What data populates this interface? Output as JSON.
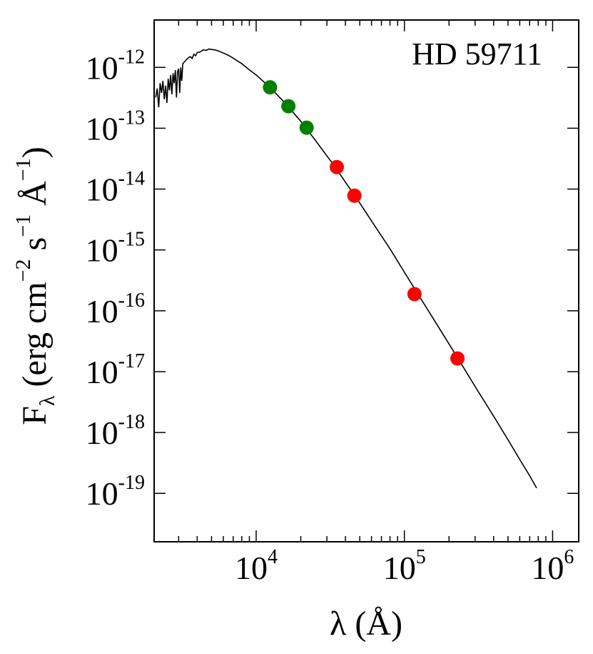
{
  "chart_data": {
    "type": "scatter",
    "title": "",
    "annotation": "HD 59711",
    "xlabel": "λ (Å)",
    "ylabel": "F<sub>λ</sub> (erg cm<sup>−2</sup> s<sup>−1</sup> Å<sup>−1</sup>)",
    "ylabel_parts": {
      "main": "F",
      "main_sub": "λ",
      "open": " (erg cm",
      "exp1": "−2",
      "s": " s",
      "exp2": "−1",
      "angstrom": " Å",
      "exp3": "−1",
      "close": ")"
    },
    "xscale": "log",
    "yscale": "log",
    "xlim": [
      2050,
      1500000
    ],
    "ylim": [
      1.6e-20,
      6e-12
    ],
    "x_ticks": [
      {
        "value": 10000,
        "base": "10",
        "exp": "4"
      },
      {
        "value": 100000,
        "base": "10",
        "exp": "5"
      },
      {
        "value": 1000000,
        "base": "10",
        "exp": "6"
      }
    ],
    "y_ticks": [
      {
        "value": 1e-12,
        "base": "10",
        "exp": "-12"
      },
      {
        "value": 1e-13,
        "base": "10",
        "exp": "-13"
      },
      {
        "value": 1e-14,
        "base": "10",
        "exp": "-14"
      },
      {
        "value": 1e-15,
        "base": "10",
        "exp": "-15"
      },
      {
        "value": 1e-16,
        "base": "10",
        "exp": "-16"
      },
      {
        "value": 1e-17,
        "base": "10",
        "exp": "-17"
      },
      {
        "value": 1e-18,
        "base": "10",
        "exp": "-18"
      },
      {
        "value": 1e-19,
        "base": "10",
        "exp": "-19"
      }
    ],
    "grid": false,
    "series": [
      {
        "kind": "model-curve",
        "color": "#000000",
        "points": [
          [
            2100,
            3.2e-13
          ],
          [
            2150,
            4.5e-13
          ],
          [
            2200,
            2.2e-13
          ],
          [
            2250,
            5.5e-13
          ],
          [
            2300,
            3.8e-13
          ],
          [
            2350,
            6e-13
          ],
          [
            2400,
            3e-13
          ],
          [
            2450,
            5e-13
          ],
          [
            2500,
            2.6e-13
          ],
          [
            2550,
            6.5e-13
          ],
          [
            2600,
            4.2e-13
          ],
          [
            2650,
            7.5e-13
          ],
          [
            2700,
            3.6e-13
          ],
          [
            2750,
            8e-13
          ],
          [
            2800,
            5.5e-13
          ],
          [
            2850,
            9e-13
          ],
          [
            2900,
            3.2e-13
          ],
          [
            2950,
            8.5e-13
          ],
          [
            3000,
            9.5e-13
          ],
          [
            3050,
            3.8e-13
          ],
          [
            3100,
            1e-12
          ],
          [
            3150,
            6e-13
          ],
          [
            3200,
            1.15e-12
          ],
          [
            3300,
            1.25e-12
          ],
          [
            3400,
            1.35e-12
          ],
          [
            3500,
            1.45e-12
          ],
          [
            3600,
            1.5e-12
          ],
          [
            3700,
            1.4e-12
          ],
          [
            3800,
            1.65e-12
          ],
          [
            3900,
            1.55e-12
          ],
          [
            4000,
            1.75e-12
          ],
          [
            4200,
            1.8e-12
          ],
          [
            4400,
            1.95e-12
          ],
          [
            4600,
            1.9e-12
          ],
          [
            4800,
            2e-12
          ],
          [
            5000,
            1.97e-12
          ],
          [
            5300,
            1.93e-12
          ],
          [
            5600,
            1.85e-12
          ],
          [
            6000,
            1.72e-12
          ],
          [
            6500,
            1.58e-12
          ],
          [
            7000,
            1.42e-12
          ],
          [
            7500,
            1.27e-12
          ],
          [
            8000,
            1.15e-12
          ],
          [
            8500,
            1.02e-12
          ],
          [
            9000,
            9.1e-13
          ],
          [
            10000,
            7.5e-13
          ],
          [
            11000,
            6.1e-13
          ],
          [
            12000,
            5e-13
          ],
          [
            13000,
            4.15e-13
          ],
          [
            14000,
            3.45e-13
          ],
          [
            15000,
            2.9e-13
          ],
          [
            16000,
            2.42e-13
          ],
          [
            17000,
            2.05e-13
          ],
          [
            18000,
            1.75e-13
          ],
          [
            20000,
            1.3e-13
          ],
          [
            22000,
            9.6e-14
          ],
          [
            25000,
            6.4e-14
          ],
          [
            28000,
            4.4e-14
          ],
          [
            32000,
            2.85e-14
          ],
          [
            36000,
            1.9e-14
          ],
          [
            40000,
            1.3e-14
          ],
          [
            45000,
            8.6e-15
          ],
          [
            50000,
            5.9e-15
          ],
          [
            60000,
            3e-15
          ],
          [
            70000,
            1.7e-15
          ],
          [
            80000,
            1.04e-15
          ],
          [
            100000,
            4.3e-16
          ],
          [
            120000,
            2.1e-16
          ],
          [
            150000,
            8.8e-17
          ],
          [
            200000,
            2.85e-17
          ],
          [
            250000,
            1.18e-17
          ],
          [
            300000,
            5.7e-18
          ],
          [
            400000,
            1.85e-18
          ],
          [
            500000,
            7.6e-19
          ],
          [
            600000,
            3.6e-19
          ],
          [
            700000,
            1.95e-19
          ],
          [
            780000,
            1.22e-19
          ]
        ]
      },
      {
        "kind": "photometry",
        "color": "#008000",
        "points": [
          [
            12400,
            4.7e-13
          ],
          [
            16500,
            2.3e-13
          ],
          [
            21900,
            1.02e-13
          ]
        ]
      },
      {
        "kind": "photometry",
        "color": "#ff0000",
        "points": [
          [
            35000,
            2.3e-14
          ],
          [
            46000,
            7.8e-15
          ],
          [
            117000,
            1.88e-16
          ],
          [
            228000,
            1.65e-17
          ]
        ]
      }
    ]
  }
}
